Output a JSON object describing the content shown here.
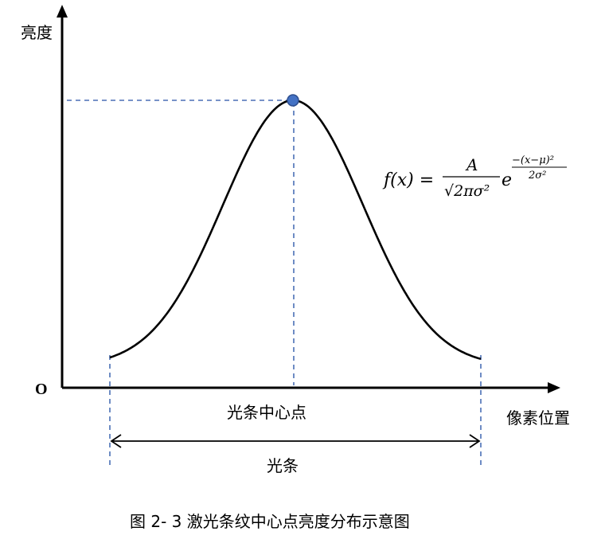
{
  "diagram": {
    "y_axis_label": "亮度",
    "x_axis_label": "像素位置",
    "origin_label": "O",
    "center_label": "光条中心点",
    "width_label": "光条",
    "formula": {
      "lhs": "f(x) =",
      "numerator": "A",
      "denominator": "√2πσ²",
      "base": "e",
      "exp_numerator": "−(x−μ)²",
      "exp_denominator": "2σ²"
    },
    "colors": {
      "peak_point": "#4472c4",
      "guide_lines": "#4a6fb5",
      "curve": "#000000"
    }
  },
  "caption": "图 2- 3  激光条纹中心点亮度分布示意图"
}
